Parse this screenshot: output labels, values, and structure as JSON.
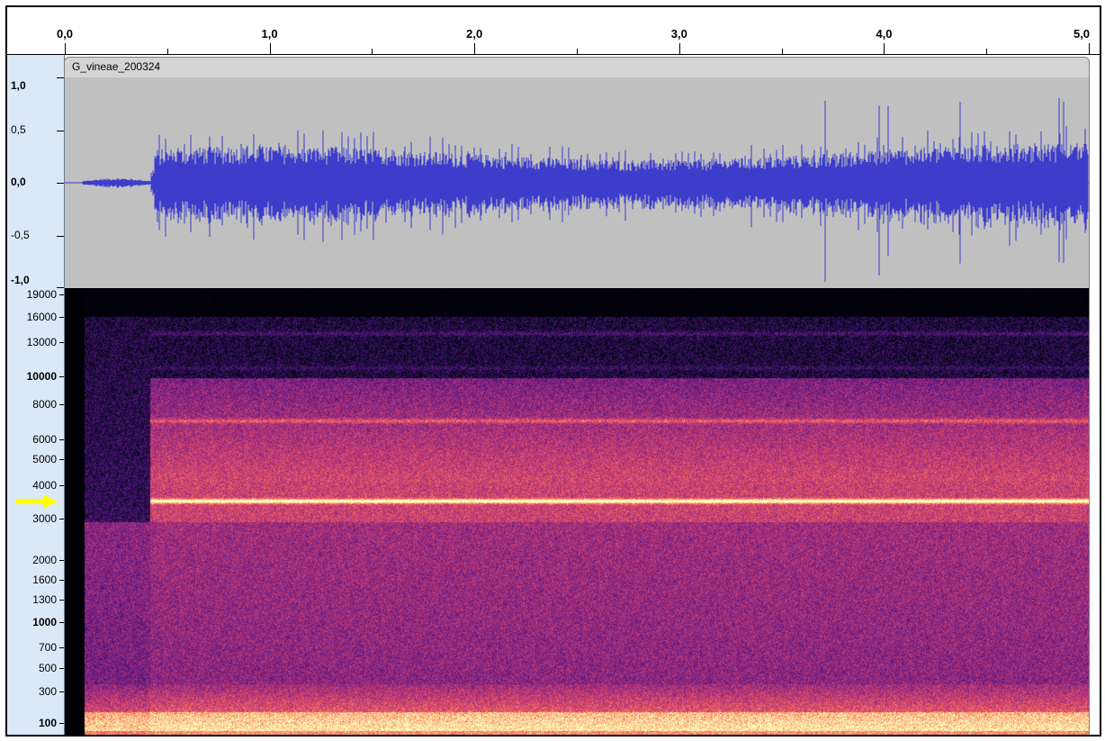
{
  "ruler": {
    "ticks": [
      {
        "value": 0.0,
        "label": "0,0"
      },
      {
        "value": 1.0,
        "label": "1,0"
      },
      {
        "value": 2.0,
        "label": "2,0"
      },
      {
        "value": 3.0,
        "label": "3,0"
      },
      {
        "value": 4.0,
        "label": "4,0"
      },
      {
        "value": 5.0,
        "label": "5,0"
      }
    ],
    "range_seconds": [
      0.0,
      5.0
    ]
  },
  "track": {
    "name": "G_vineae_200324"
  },
  "amplitude_scale": {
    "labels": [
      {
        "value": 1.0,
        "label": "1,0",
        "bold": true
      },
      {
        "value": 0.5,
        "label": "0,5",
        "bold": false
      },
      {
        "value": 0.0,
        "label": "0,0",
        "bold": true
      },
      {
        "value": -0.5,
        "label": "-0,5",
        "bold": false
      },
      {
        "value": -1.0,
        "label": "-1,0",
        "bold": true
      }
    ]
  },
  "frequency_scale": {
    "labels": [
      {
        "value": 19000,
        "label": "19000",
        "bold": false
      },
      {
        "value": 16000,
        "label": "16000",
        "bold": false
      },
      {
        "value": 13000,
        "label": "13000",
        "bold": false
      },
      {
        "value": 10000,
        "label": "10000",
        "bold": true
      },
      {
        "value": 8000,
        "label": "8000",
        "bold": false
      },
      {
        "value": 6000,
        "label": "6000",
        "bold": false
      },
      {
        "value": 5000,
        "label": "5000",
        "bold": false
      },
      {
        "value": 4000,
        "label": "4000",
        "bold": false
      },
      {
        "value": 3000,
        "label": "3000",
        "bold": false
      },
      {
        "value": 2000,
        "label": "2000",
        "bold": false
      },
      {
        "value": 1600,
        "label": "1600",
        "bold": false
      },
      {
        "value": 1300,
        "label": "1300",
        "bold": false
      },
      {
        "value": 1000,
        "label": "1000",
        "bold": true
      },
      {
        "value": 700,
        "label": "700",
        "bold": false
      },
      {
        "value": 500,
        "label": "500",
        "bold": false
      },
      {
        "value": 300,
        "label": "300",
        "bold": false
      },
      {
        "value": 100,
        "label": "100",
        "bold": true
      }
    ]
  },
  "colors": {
    "waveform": "#3d3dcc",
    "waveform_bg": "#c0c0c0",
    "scale_bg": "#dbe8f7",
    "arrow": "#ffff00"
  },
  "spectrogram": {
    "tones_hz": [
      3500,
      7000,
      10700,
      14000
    ]
  }
}
